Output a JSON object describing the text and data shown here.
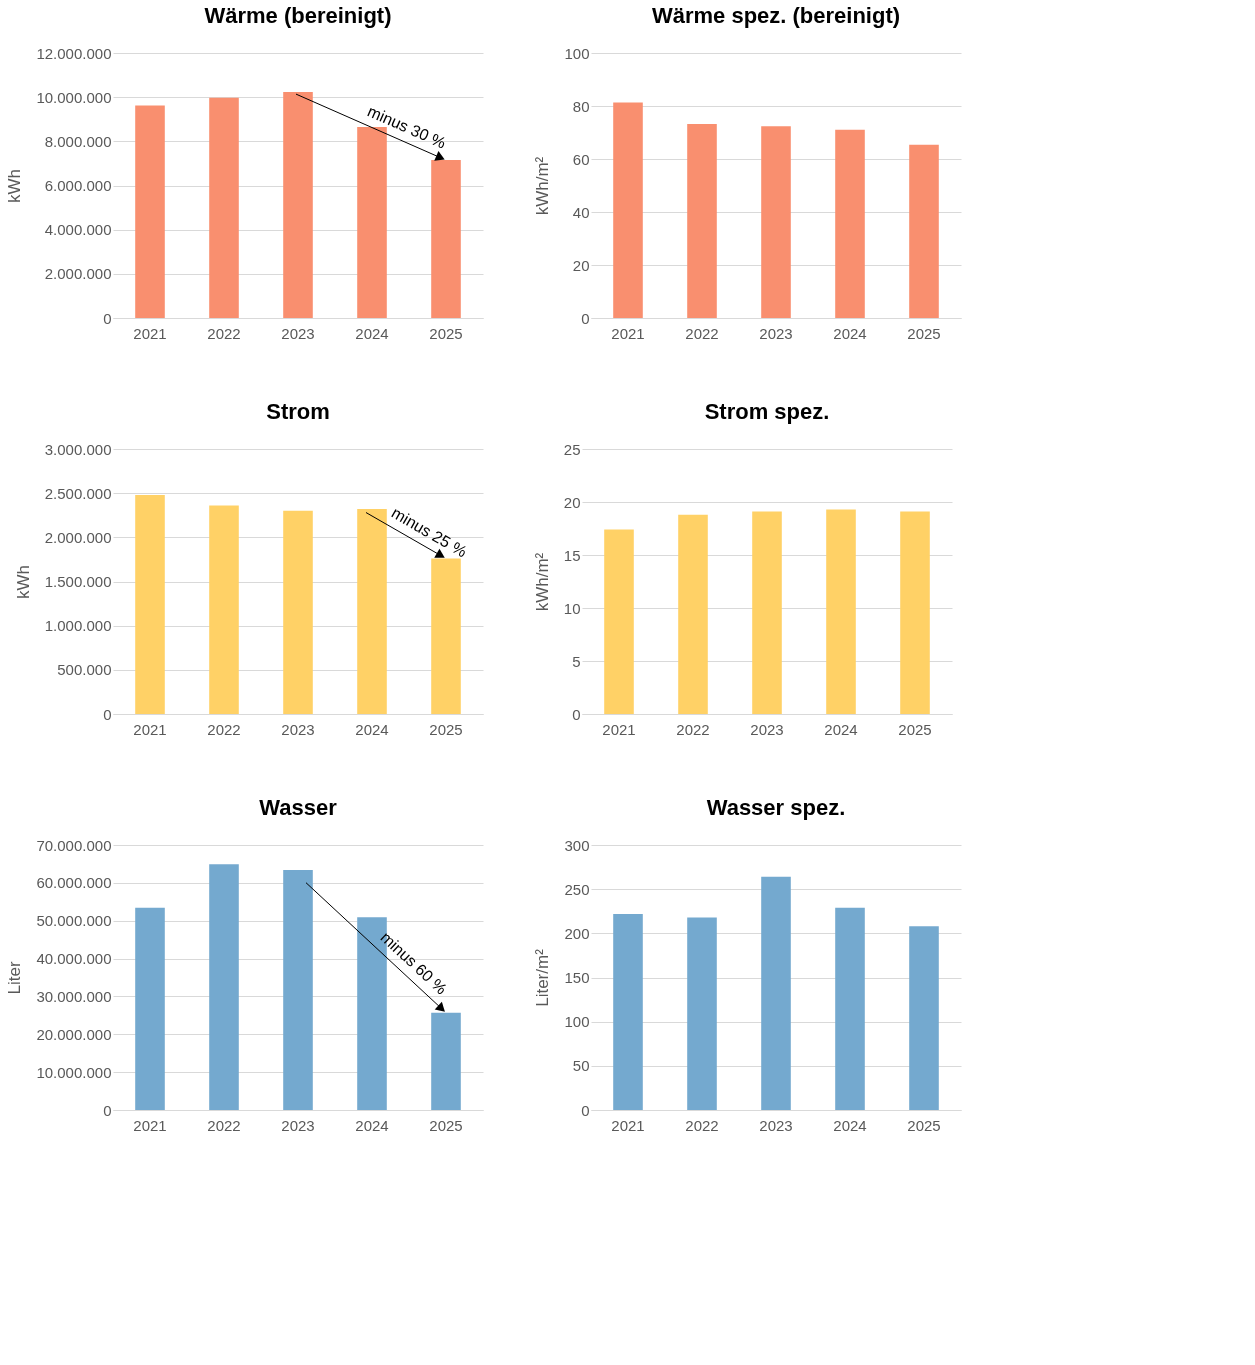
{
  "chart_data": [
    {
      "type": "bar",
      "title": "Wärme (bereinigt)",
      "ylabel": "kWh",
      "categories": [
        "2021",
        "2022",
        "2023",
        "2024",
        "2025"
      ],
      "series": [
        {
          "color": "#f98f6f",
          "values": [
            9620000,
            9970000,
            10230000,
            8650000,
            7150000
          ]
        }
      ],
      "ylim": [
        0,
        12000000
      ],
      "yticks": [
        0,
        {
          "value": 2000000,
          "label": "2.000.000"
        },
        {
          "value": 4000000,
          "label": "4.000.000"
        },
        {
          "value": 6000000,
          "label": "6.000.000"
        },
        {
          "value": 8000000,
          "label": "8.000.000"
        },
        {
          "value": 10000000,
          "label": "10.000.000"
        },
        {
          "value": 12000000,
          "label": "12.000.000"
        }
      ],
      "grid": "y",
      "annotations": [
        {
          "text": "minus 30 %",
          "x": "2025",
          "y": 7150000
        }
      ]
    },
    {
      "type": "bar",
      "title": "Wärme spez. (bereinigt)",
      "ylabel": "kWh/m²",
      "categories": [
        "2021",
        "2022",
        "2023",
        "2024",
        "2025"
      ],
      "series": [
        {
          "color": "#f98f6f",
          "values": [
            81.3,
            73.2,
            72.4,
            71.0,
            65.4
          ]
        }
      ],
      "ylim": [
        0,
        100
      ],
      "yticks": [
        0,
        20,
        40,
        60,
        80,
        100
      ],
      "grid": "y"
    },
    {
      "type": "bar",
      "title": "Strom",
      "ylabel": "kWh",
      "categories": [
        "2021",
        "2022",
        "2023",
        "2024",
        "2025"
      ],
      "series": [
        {
          "color": "#ffd166",
          "values": [
            2480000,
            2360000,
            2300000,
            2320000,
            1760000
          ]
        }
      ],
      "ylim": [
        0,
        3000000
      ],
      "yticks": [
        0,
        {
          "value": 500000,
          "label": "500.000"
        },
        {
          "value": 1000000,
          "label": "1.000.000"
        },
        {
          "value": 1500000,
          "label": "1.500.000"
        },
        {
          "value": 2000000,
          "label": "2.000.000"
        },
        {
          "value": 2500000,
          "label": "2.500.000"
        },
        {
          "value": 3000000,
          "label": "3.000.000"
        }
      ],
      "grid": "y",
      "annotations": [
        {
          "text": "minus 25 %",
          "x": "2025",
          "y": 1760000
        }
      ]
    },
    {
      "type": "bar",
      "title": "Strom spez.",
      "ylabel": "kWh/m²",
      "categories": [
        "2021",
        "2022",
        "2023",
        "2024",
        "2025"
      ],
      "series": [
        {
          "color": "#ffd166",
          "values": [
            17.4,
            18.8,
            19.1,
            19.3,
            19.1
          ]
        }
      ],
      "ylim": [
        0,
        25
      ],
      "yticks": [
        0,
        5,
        10,
        15,
        20,
        25
      ],
      "grid": "y"
    },
    {
      "type": "bar",
      "title": "Wasser",
      "ylabel": "Liter",
      "categories": [
        "2021",
        "2022",
        "2023",
        "2024",
        "2025"
      ],
      "series": [
        {
          "color": "#74a9cf",
          "values": [
            53400000,
            64900000,
            63400000,
            50900000,
            25700000
          ]
        }
      ],
      "ylim": [
        0,
        70000000
      ],
      "yticks": [
        0,
        {
          "value": 10000000,
          "label": "10.000.000"
        },
        {
          "value": 20000000,
          "label": "20.000.000"
        },
        {
          "value": 30000000,
          "label": "30.000.000"
        },
        {
          "value": 40000000,
          "label": "40.000.000"
        },
        {
          "value": 50000000,
          "label": "50.000.000"
        },
        {
          "value": 60000000,
          "label": "60.000.000"
        },
        {
          "value": 70000000,
          "label": "70.000.000"
        }
      ],
      "grid": "y",
      "annotations": [
        {
          "text": "minus 60 %",
          "x": "2025",
          "y": 25700000
        }
      ]
    },
    {
      "type": "bar",
      "title": "Wasser spez.",
      "ylabel": "Liter/m²",
      "categories": [
        "2021",
        "2022",
        "2023",
        "2024",
        "2025"
      ],
      "series": [
        {
          "color": "#74a9cf",
          "values": [
            222,
            218,
            264,
            229,
            208
          ]
        }
      ],
      "ylim": [
        0,
        300
      ],
      "yticks": [
        0,
        50,
        100,
        150,
        200,
        250,
        300
      ],
      "grid": "y"
    }
  ]
}
